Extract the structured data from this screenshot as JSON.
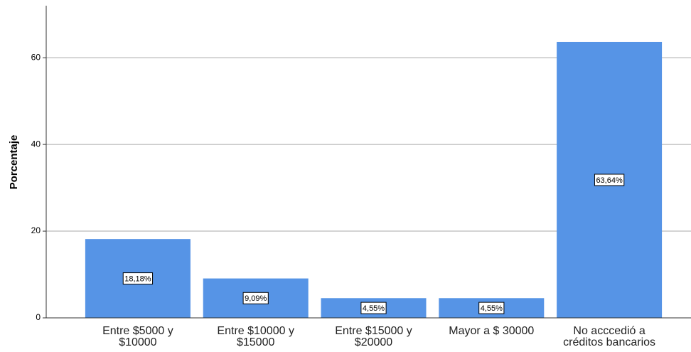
{
  "chart_data": {
    "type": "bar",
    "y_label": "Porcentaje",
    "categories": [
      "Entre $5000 y\n$10000",
      "Entre $10000 y\n$15000",
      "Entre $15000 y\n$20000",
      "Mayor a $ 30000",
      "No acccedió a\ncréditos bancarios"
    ],
    "values": [
      18.18,
      9.09,
      4.55,
      4.55,
      63.64
    ],
    "value_labels": [
      "18,18%",
      "9,09%",
      "4,55%",
      "4,55%",
      "63,64%"
    ],
    "color": "#5694e6",
    "ylim": [
      0,
      72
    ],
    "yticks": [
      0,
      20,
      40,
      60
    ],
    "grid": true
  }
}
